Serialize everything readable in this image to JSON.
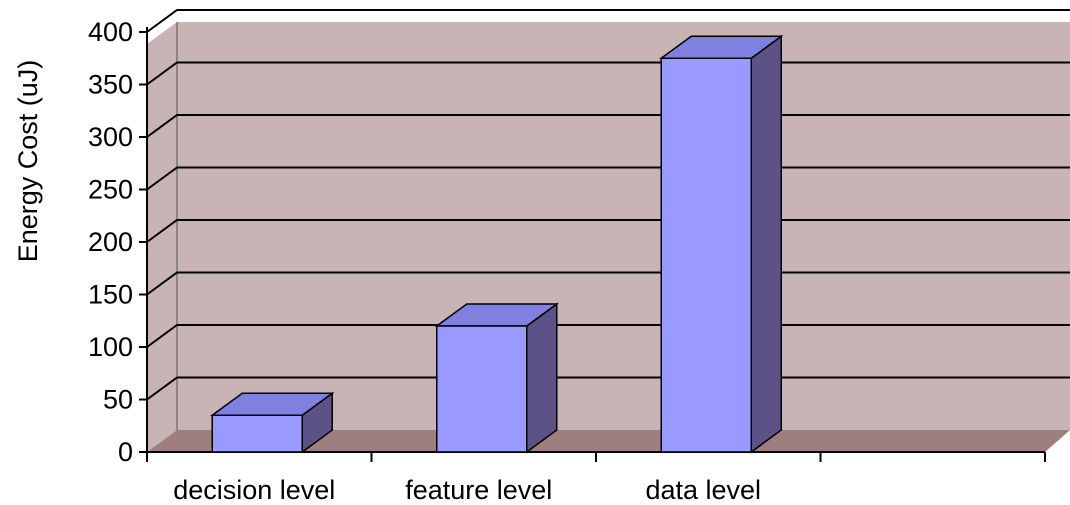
{
  "chart_data": {
    "type": "bar",
    "style": "3d-column",
    "title": "",
    "xlabel": "",
    "ylabel": "Energy Cost (uJ)",
    "categories": [
      "decision level",
      "feature level",
      "data level",
      ""
    ],
    "values": [
      35,
      120,
      375,
      null
    ],
    "ylim": [
      0,
      400
    ],
    "yticks": [
      0,
      50,
      100,
      150,
      200,
      250,
      300,
      350,
      400
    ],
    "grid": true,
    "legend": "none",
    "colors": {
      "bar_front": "#9999ff",
      "bar_top": "#8080e0",
      "bar_side": "#5c5288",
      "wall": "#c8b4b4",
      "floor": "#9e7e7e",
      "gridline": "#000000"
    }
  }
}
